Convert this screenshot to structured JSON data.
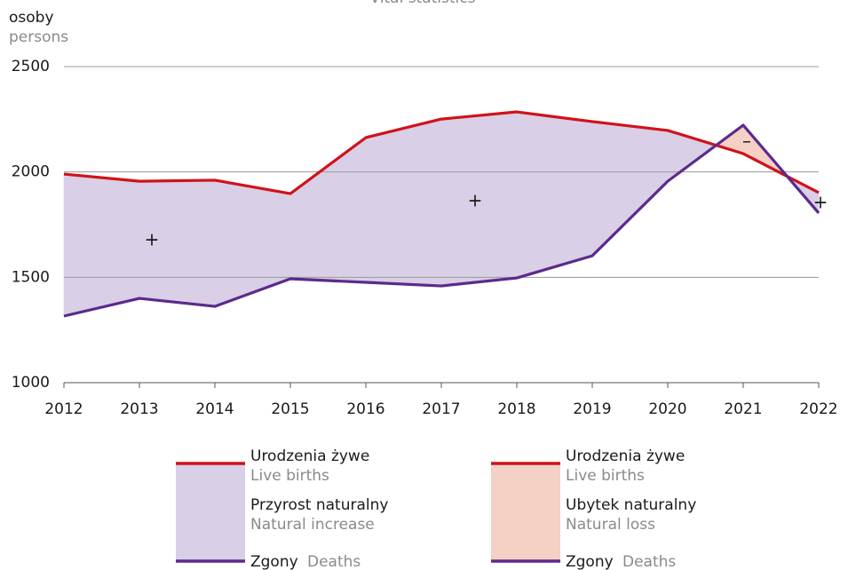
{
  "chart_data": {
    "type": "line",
    "title": "Vital statistics",
    "y_label": "osoby",
    "y_label_en": "persons",
    "x": [
      2012,
      2013,
      2014,
      2015,
      2016,
      2017,
      2018,
      2019,
      2020,
      2021,
      2022
    ],
    "series": [
      {
        "name": "Urodzenia żywe",
        "name_en": "Live births",
        "color": "#d0121b",
        "values": [
          1990,
          1956,
          1961,
          1897,
          2163,
          2251,
          2285,
          2239,
          2197,
          2087,
          1902
        ]
      },
      {
        "name": "Zgony",
        "name_en": "Deaths",
        "color": "#5b2a8c",
        "values": [
          1316,
          1400,
          1362,
          1493,
          1476,
          1459,
          1497,
          1602,
          1956,
          2222,
          1805
        ]
      }
    ],
    "fills": [
      {
        "name": "Przyrost naturalny",
        "name_en": "Natural increase",
        "color": "#d9cfe6"
      },
      {
        "name": "Ubytek naturalny",
        "name_en": "Natural loss",
        "color": "#f5d0c5"
      }
    ],
    "annotations": [
      "+",
      "+",
      "–",
      "+"
    ],
    "xlim": [
      2012,
      2022
    ],
    "xticks": [
      2012,
      2013,
      2014,
      2015,
      2016,
      2017,
      2018,
      2019,
      2020,
      2021,
      2022
    ],
    "ylim": [
      1000,
      2500
    ],
    "yticks": [
      1000,
      1500,
      2000,
      2500
    ],
    "grid": true
  }
}
